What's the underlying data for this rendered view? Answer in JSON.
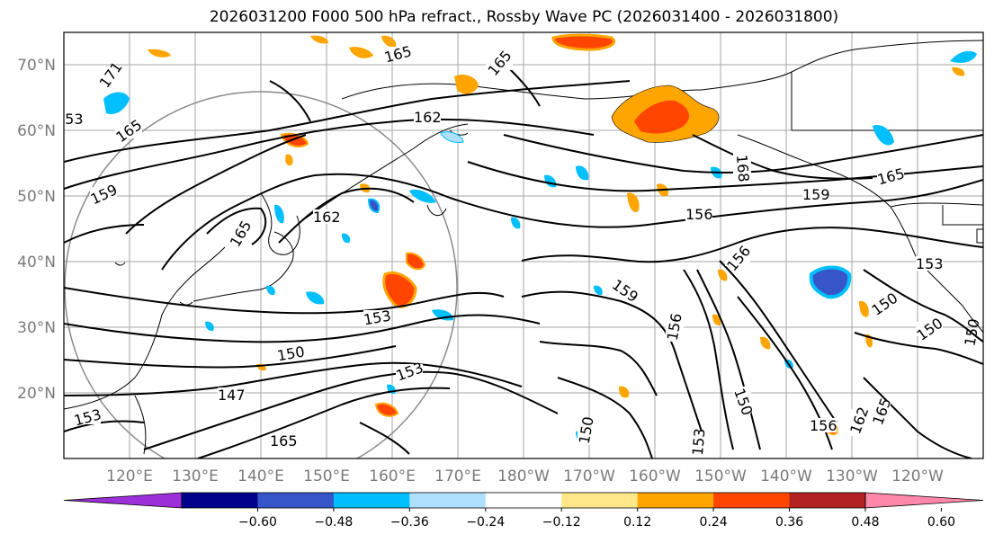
{
  "title": "2026031200 F000 500 hPa refract., Rossby Wave PC (2026031400 - 2026031800)",
  "map": {
    "lat_labels": [
      "70°N",
      "60°N",
      "50°N",
      "40°N",
      "30°N",
      "20°N"
    ],
    "lon_labels": [
      "120°E",
      "130°E",
      "140°E",
      "150°E",
      "160°E",
      "170°E",
      "180°W",
      "170°W",
      "160°W",
      "150°W",
      "140°W",
      "130°W",
      "120°W"
    ],
    "gridline_color": "#9e9e9e",
    "contour_color": "#000000",
    "contour_labels": [
      "171",
      "165",
      "165",
      "165",
      "162",
      "159",
      "165",
      "162",
      "168",
      "165",
      "159",
      "156",
      "153",
      "159",
      "150",
      "156",
      "153",
      "150",
      "150",
      "147",
      "153",
      "165",
      "153",
      "150",
      "156",
      "150",
      "162",
      "165",
      "156",
      "153",
      "153",
      "150"
    ]
  },
  "colorbar": {
    "ticks": [
      "−0.60",
      "−0.48",
      "−0.36",
      "−0.24",
      "−0.12",
      "0.12",
      "0.24",
      "0.36",
      "0.48",
      "0.60"
    ],
    "colors": [
      "#9b30d9",
      "#00008b",
      "#3655c8",
      "#00bfff",
      "#b0e0ff",
      "#ffffff",
      "#ffe88a",
      "#ffa500",
      "#ff4500",
      "#b22222",
      "#ff88aa"
    ]
  },
  "features": {
    "positive_anomaly_colors": [
      "#ffe88a",
      "#ffa500",
      "#ff4500"
    ],
    "negative_anomaly_colors": [
      "#b0e0ff",
      "#00bfff",
      "#3655c8"
    ]
  }
}
